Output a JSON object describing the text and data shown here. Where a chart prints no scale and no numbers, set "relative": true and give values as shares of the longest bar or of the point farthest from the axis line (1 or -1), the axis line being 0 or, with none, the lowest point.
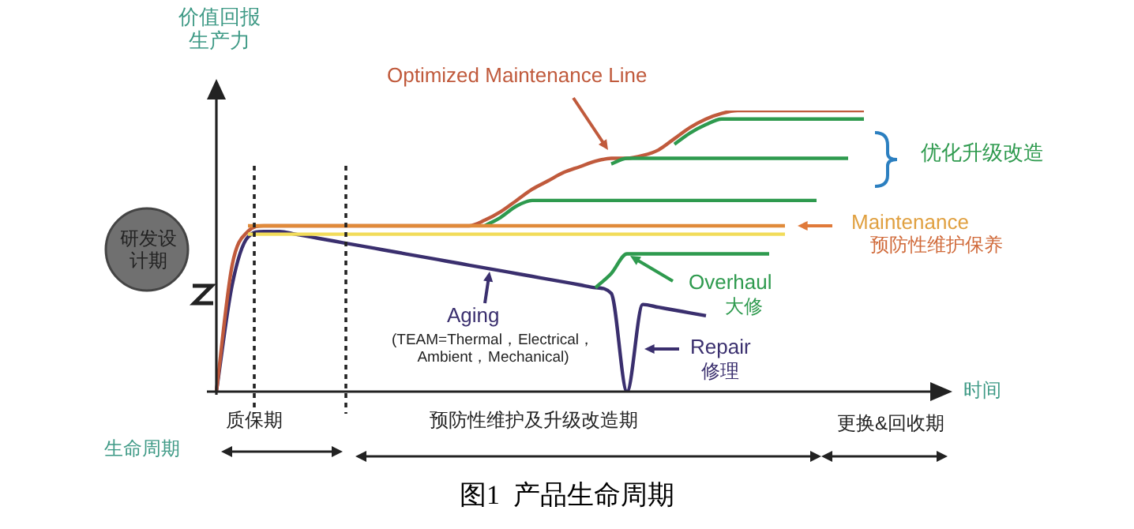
{
  "chart_data": {
    "type": "line",
    "relative": true,
    "title": "图1  产品生命周期",
    "ylabel": "价值回报生产力",
    "xlabel": "时间",
    "categories": [
      null,
      null,
      null,
      null,
      null,
      null,
      null,
      null,
      null,
      null,
      null,
      null,
      null,
      null,
      null,
      null,
      null,
      null,
      null,
      null,
      null,
      null,
      null,
      null,
      null,
      null,
      null,
      null,
      null,
      null,
      null,
      null,
      null,
      null,
      null,
      null,
      null,
      null,
      null,
      null,
      null,
      null,
      null,
      null,
      null,
      null,
      null
    ],
    "series": [
      {
        "color": "#e08a3a",
        "values": [
          null,
          null,
          0.59,
          0.59,
          0.59,
          0.59,
          0.59,
          0.59,
          0.59,
          0.59,
          0.59,
          0.59,
          0.59,
          0.59,
          0.59,
          0.59,
          0.59,
          0.59,
          0.59,
          0.59,
          0.59,
          0.59,
          0.59,
          0.59,
          0.59,
          0.59,
          0.59,
          0.59,
          0.59,
          0.59,
          0.59,
          0.59,
          0.59,
          0.59,
          0.59,
          0.59,
          0.59,
          null,
          null,
          null,
          null,
          null,
          null,
          null,
          null,
          null,
          null
        ]
      },
      {
        "color": "#f2dc5a",
        "values": [
          null,
          null,
          0.56,
          0.56,
          0.56,
          0.56,
          0.56,
          0.56,
          0.56,
          0.56,
          0.56,
          0.56,
          0.56,
          0.56,
          0.56,
          0.56,
          0.56,
          0.56,
          0.56,
          0.56,
          0.56,
          0.56,
          0.56,
          0.56,
          0.56,
          0.56,
          0.56,
          0.56,
          0.56,
          0.56,
          0.56,
          0.56,
          0.56,
          0.56,
          0.56,
          0.56,
          0.56,
          null,
          null,
          null,
          null,
          null,
          null,
          null,
          null,
          null,
          null
        ]
      },
      {
        "color": "#2e9a4e",
        "values": [
          null,
          null,
          null,
          null,
          null,
          null,
          null,
          null,
          null,
          null,
          null,
          null,
          null,
          null,
          null,
          null,
          null,
          0.59,
          0.62,
          0.66,
          0.68,
          0.68,
          0.68,
          0.68,
          0.68,
          0.68,
          0.68,
          0.68,
          0.68,
          0.68,
          0.68,
          0.68,
          0.68,
          0.68,
          0.68,
          0.68,
          0.68,
          0.68,
          0.68,
          null,
          null,
          null,
          null,
          null,
          null,
          null,
          null
        ]
      },
      {
        "color": "#2e9a4e",
        "values": [
          null,
          null,
          null,
          null,
          null,
          null,
          null,
          null,
          null,
          null,
          null,
          null,
          null,
          null,
          null,
          null,
          null,
          null,
          null,
          null,
          null,
          null,
          null,
          null,
          null,
          0.81,
          0.83,
          0.83,
          0.83,
          0.83,
          0.83,
          0.83,
          0.83,
          0.83,
          0.83,
          0.83,
          0.83,
          0.83,
          0.83,
          0.83,
          0.83,
          null,
          null,
          null,
          null,
          null,
          null
        ]
      },
      {
        "color": "#2e9a4e",
        "values": [
          null,
          null,
          null,
          null,
          null,
          null,
          null,
          null,
          null,
          null,
          null,
          null,
          null,
          null,
          null,
          null,
          null,
          null,
          null,
          null,
          null,
          null,
          null,
          null,
          null,
          null,
          null,
          null,
          null,
          0.88,
          0.92,
          0.95,
          0.97,
          0.97,
          0.97,
          0.97,
          0.97,
          0.97,
          0.97,
          0.97,
          0.97,
          0.97,
          null,
          null,
          null,
          null,
          null
        ]
      },
      {
        "color": "#c05a3c",
        "values": [
          0,
          0.45,
          0.57,
          0.59,
          0.59,
          0.59,
          0.59,
          0.59,
          0.59,
          0.59,
          0.59,
          0.59,
          0.59,
          0.59,
          0.59,
          0.59,
          0.59,
          0.61,
          0.64,
          0.68,
          0.72,
          0.75,
          0.78,
          0.8,
          0.82,
          0.83,
          0.83,
          0.84,
          0.86,
          0.9,
          0.94,
          0.97,
          0.99,
          1,
          1,
          1,
          1,
          1,
          1,
          1,
          1,
          1,
          null,
          null,
          null,
          null,
          null
        ]
      },
      {
        "color": "#2e9a4e",
        "values": [
          null,
          null,
          null,
          null,
          null,
          null,
          null,
          null,
          null,
          null,
          null,
          null,
          null,
          null,
          null,
          null,
          null,
          null,
          null,
          null,
          null,
          null,
          null,
          null,
          0.37,
          0.42,
          0.49,
          0.49,
          0.49,
          0.49,
          0.49,
          0.49,
          0.49,
          0.49,
          0.49,
          0.49,
          null,
          null,
          null,
          null,
          null,
          null,
          null,
          null,
          null,
          null,
          null
        ]
      },
      {
        "color": "#3a2f6e",
        "values": [
          0,
          0.38,
          0.55,
          0.57,
          0.57,
          0.56,
          0.55,
          0.54,
          0.53,
          0.52,
          0.51,
          0.5,
          0.49,
          0.48,
          0.47,
          0.46,
          0.45,
          0.44,
          0.43,
          0.42,
          0.41,
          0.4,
          0.39,
          0.38,
          0.37,
          0.35,
          0,
          0.31,
          0.3,
          0.29,
          0.28,
          0.27,
          null,
          null,
          null,
          null,
          null,
          null,
          null,
          null,
          null,
          null,
          null,
          null,
          null,
          null,
          null
        ]
      }
    ],
    "annotations": [
      "Optimized Maintenance Line",
      "优化升级改造",
      "Maintenance",
      "预防性维护保养",
      "Overhaul",
      "大修",
      "Aging",
      "(TEAM=Thermal，Electrical，\nAmbient，Mechanical)",
      "Repair",
      "修理",
      "研发设计期",
      "质保期",
      "预防性维护及升级改造期",
      "更换&回收期",
      "生命周期"
    ],
    "legend": false
  }
}
